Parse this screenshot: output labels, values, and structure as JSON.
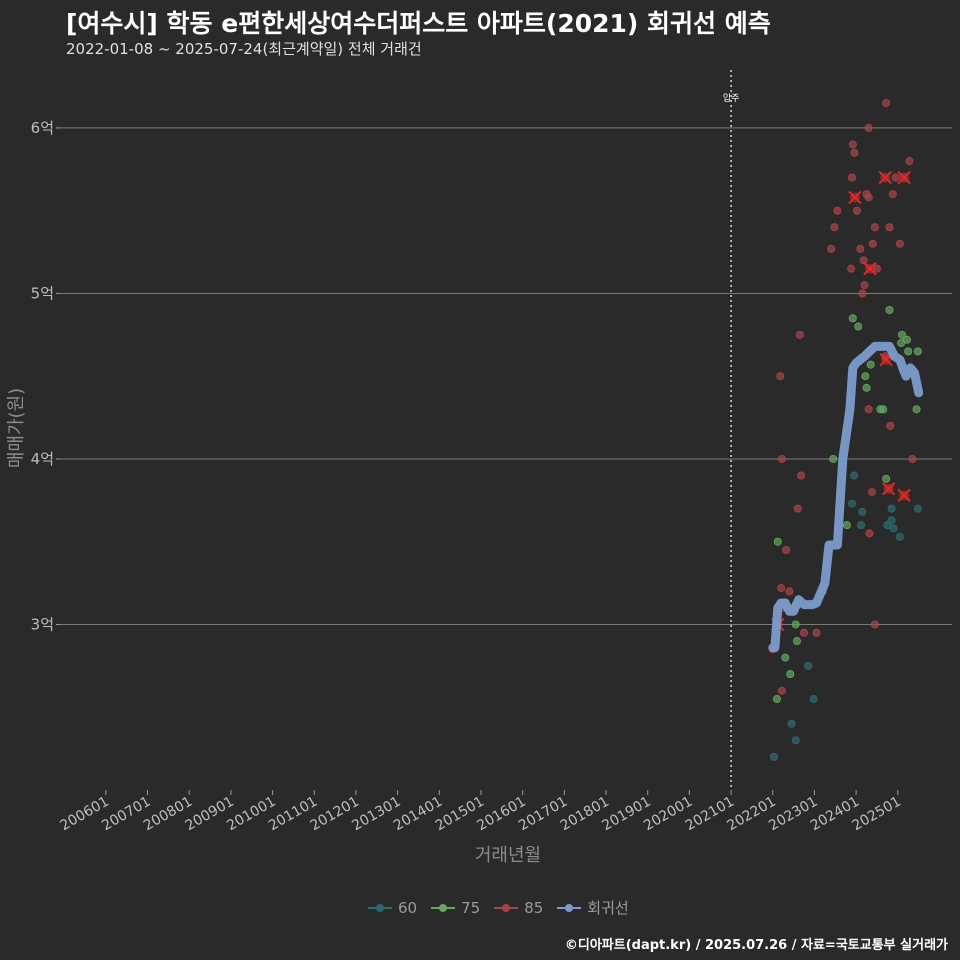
{
  "title": "[여수시] 학동 e편한세상여수더퍼스트 아파트(2021) 회귀선 예측",
  "subtitle": "2022-01-08 ~ 2025-07-24(최근계약일) 전체 거래건",
  "credit": "©디아파트(dapt.kr) / 2025.07.26 / 자료=국토교통부 실거래가",
  "chart_data": {
    "type": "scatter",
    "xlabel": "거래년월",
    "ylabel": "매매가(원)",
    "x_ticks": [
      "200601",
      "200701",
      "200801",
      "200901",
      "201001",
      "201101",
      "201201",
      "201301",
      "201401",
      "201501",
      "201601",
      "201701",
      "201801",
      "201901",
      "202001",
      "202101",
      "202201",
      "202301",
      "202401",
      "202501"
    ],
    "y_ticks": [
      {
        "value": 3,
        "label": "3억"
      },
      {
        "value": 4,
        "label": "4억"
      },
      {
        "value": 5,
        "label": "5억"
      },
      {
        "value": 6,
        "label": "6억"
      }
    ],
    "xlim": [
      2004.9,
      2026.3
    ],
    "ylim": [
      2.0,
      6.35
    ],
    "vline": {
      "x": 2021.0,
      "label": "입주"
    },
    "grid": true,
    "legend": "bottom",
    "colors": {
      "60": "#2e6b70",
      "75": "#63a85d",
      "85": "#a84448",
      "회귀선": "#7b9ccc",
      "highlight": "#e32828"
    },
    "series": [
      {
        "name": "60",
        "points": [
          [
            2022.03,
            2.2
          ],
          [
            2022.45,
            2.4
          ],
          [
            2022.55,
            2.3
          ],
          [
            2022.85,
            2.75
          ],
          [
            2022.98,
            2.55
          ],
          [
            2023.95,
            3.9
          ],
          [
            2023.9,
            3.73
          ],
          [
            2024.15,
            3.68
          ],
          [
            2024.12,
            3.6
          ],
          [
            2024.75,
            3.6
          ],
          [
            2024.85,
            3.63
          ],
          [
            2024.9,
            3.58
          ],
          [
            2025.05,
            3.53
          ],
          [
            2025.48,
            3.7
          ],
          [
            2024.85,
            3.7
          ]
        ]
      },
      {
        "name": "75",
        "points": [
          [
            2022.1,
            2.55
          ],
          [
            2022.12,
            3.5
          ],
          [
            2022.3,
            2.8
          ],
          [
            2022.42,
            2.7
          ],
          [
            2022.55,
            3.0
          ],
          [
            2022.58,
            2.9
          ],
          [
            2023.45,
            4.0
          ],
          [
            2023.78,
            3.6
          ],
          [
            2023.92,
            4.85
          ],
          [
            2024.05,
            4.8
          ],
          [
            2024.25,
            4.43
          ],
          [
            2024.22,
            4.5
          ],
          [
            2024.35,
            4.57
          ],
          [
            2024.58,
            4.3
          ],
          [
            2024.65,
            4.3
          ],
          [
            2024.8,
            4.9
          ],
          [
            2025.08,
            4.7
          ],
          [
            2025.1,
            4.75
          ],
          [
            2025.22,
            4.72
          ],
          [
            2025.25,
            4.65
          ],
          [
            2025.45,
            4.3
          ],
          [
            2025.48,
            4.65
          ],
          [
            2024.72,
            3.88
          ]
        ]
      },
      {
        "name": "85",
        "points": [
          [
            2022.0,
            2.85
          ],
          [
            2022.12,
            3.0
          ],
          [
            2022.2,
            3.22
          ],
          [
            2022.25,
            3.1
          ],
          [
            2022.22,
            2.6
          ],
          [
            2022.18,
            4.5
          ],
          [
            2022.22,
            4.0
          ],
          [
            2022.32,
            3.45
          ],
          [
            2022.4,
            3.2
          ],
          [
            2022.6,
            3.7
          ],
          [
            2022.65,
            4.75
          ],
          [
            2022.68,
            3.9
          ],
          [
            2022.75,
            2.95
          ],
          [
            2023.05,
            2.95
          ],
          [
            2023.2,
            3.2
          ],
          [
            2023.3,
            3.35
          ],
          [
            2023.4,
            5.27
          ],
          [
            2023.48,
            5.4
          ],
          [
            2023.55,
            5.5
          ],
          [
            2023.88,
            5.15
          ],
          [
            2023.9,
            5.7
          ],
          [
            2023.92,
            5.9
          ],
          [
            2023.96,
            5.85
          ],
          [
            2024.02,
            5.5
          ],
          [
            2024.1,
            5.27
          ],
          [
            2024.15,
            5.0
          ],
          [
            2024.18,
            5.2
          ],
          [
            2024.2,
            5.05
          ],
          [
            2024.25,
            5.6
          ],
          [
            2024.3,
            6.0
          ],
          [
            2024.3,
            5.58
          ],
          [
            2024.4,
            5.3
          ],
          [
            2024.45,
            5.4
          ],
          [
            2024.5,
            5.15
          ],
          [
            2024.38,
            3.8
          ],
          [
            2024.45,
            3.0
          ],
          [
            2024.3,
            4.3
          ],
          [
            2024.72,
            6.15
          ],
          [
            2024.8,
            5.4
          ],
          [
            2024.88,
            5.6
          ],
          [
            2024.82,
            4.2
          ],
          [
            2024.95,
            5.7
          ],
          [
            2025.05,
            5.3
          ],
          [
            2025.28,
            5.8
          ],
          [
            2025.35,
            4.0
          ],
          [
            2024.7,
            4.62
          ],
          [
            2024.32,
            3.55
          ]
        ]
      }
    ],
    "highlights": [
      [
        2022.12,
        3.0
      ],
      [
        2023.97,
        5.58
      ],
      [
        2024.33,
        5.15
      ],
      [
        2024.7,
        5.7
      ],
      [
        2025.15,
        5.7
      ],
      [
        2024.78,
        3.82
      ],
      [
        2025.15,
        3.78
      ],
      [
        2024.72,
        4.6
      ]
    ],
    "regression": {
      "name": "회귀선",
      "points": [
        [
          2022.0,
          2.86
        ],
        [
          2022.05,
          2.86
        ],
        [
          2022.12,
          3.1
        ],
        [
          2022.2,
          3.13
        ],
        [
          2022.3,
          3.13
        ],
        [
          2022.4,
          3.08
        ],
        [
          2022.5,
          3.08
        ],
        [
          2022.62,
          3.15
        ],
        [
          2022.75,
          3.12
        ],
        [
          2022.95,
          3.12
        ],
        [
          2023.05,
          3.13
        ],
        [
          2023.25,
          3.25
        ],
        [
          2023.35,
          3.48
        ],
        [
          2023.55,
          3.48
        ],
        [
          2023.68,
          4.0
        ],
        [
          2023.85,
          4.3
        ],
        [
          2023.92,
          4.55
        ],
        [
          2024.0,
          4.58
        ],
        [
          2024.2,
          4.62
        ],
        [
          2024.32,
          4.65
        ],
        [
          2024.45,
          4.68
        ],
        [
          2024.62,
          4.68
        ],
        [
          2024.8,
          4.68
        ],
        [
          2024.92,
          4.62
        ],
        [
          2025.05,
          4.6
        ],
        [
          2025.12,
          4.55
        ],
        [
          2025.2,
          4.5
        ],
        [
          2025.3,
          4.55
        ],
        [
          2025.4,
          4.52
        ],
        [
          2025.5,
          4.4
        ]
      ]
    }
  }
}
